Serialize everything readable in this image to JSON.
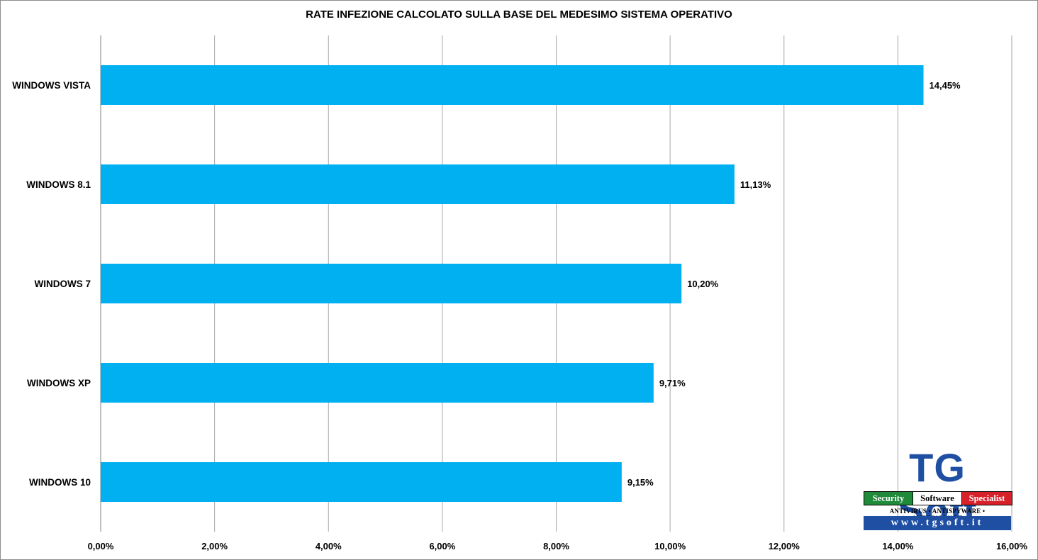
{
  "chart_data": {
    "type": "bar",
    "orientation": "horizontal",
    "title": "RATE INFEZIONE CALCOLATO SULLA BASE DEL MEDESIMO SISTEMA OPERATIVO",
    "categories": [
      "WINDOWS VISTA",
      "WINDOWS 8.1",
      "WINDOWS 7",
      "WINDOWS XP",
      "WINDOWS 10"
    ],
    "values": [
      14.45,
      11.13,
      10.2,
      9.71,
      9.15
    ],
    "data_labels": [
      "14,45%",
      "11,13%",
      "10,20%",
      "9,71%",
      "9,15%"
    ],
    "x_ticks": [
      "0,00%",
      "2,00%",
      "4,00%",
      "6,00%",
      "8,00%",
      "10,00%",
      "12,00%",
      "14,00%",
      "16,00%"
    ],
    "xlim": [
      0,
      16
    ],
    "grid": true,
    "legend": "none",
    "bar_color": "#00b0f0",
    "xlabel": "",
    "ylabel": ""
  },
  "logo": {
    "name": "TG Soft",
    "tagline": [
      "Security",
      "Software",
      "Specialist"
    ],
    "subtitle": "ANTIVIRUS • ANTISPYWARE • ANTIMALWARE",
    "url": "www.tgsoft.it",
    "colors": {
      "blue": "#1f4fa3",
      "green": "#1f8a3a",
      "red": "#d8202a"
    }
  }
}
